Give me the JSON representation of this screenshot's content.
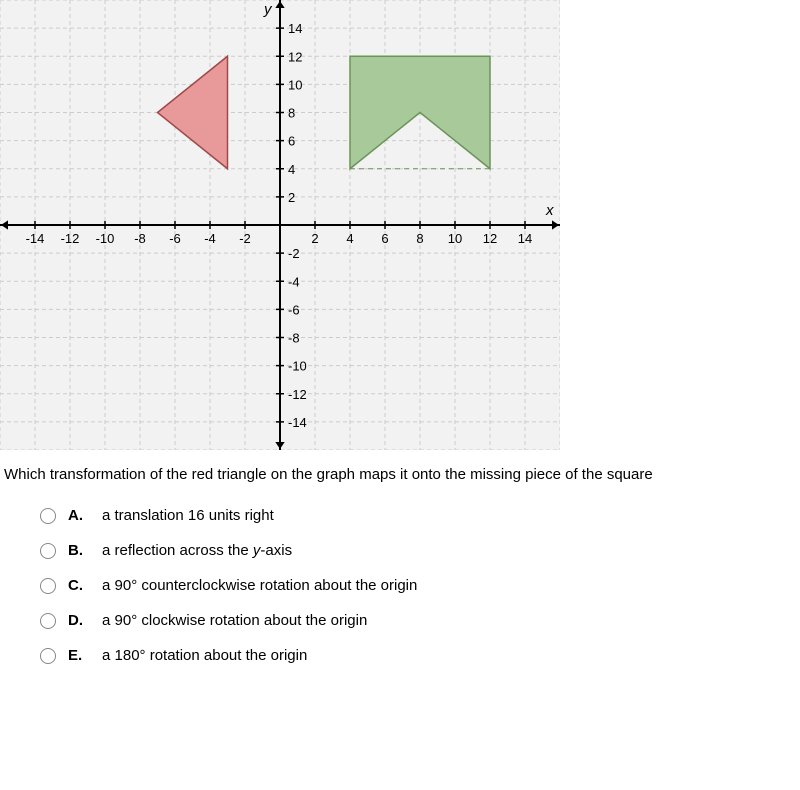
{
  "graph": {
    "bg": "#f2f2f2",
    "grid_color": "#cccccc",
    "axis_color": "#000000",
    "x_label": "x",
    "y_label": "y",
    "x_min": -16,
    "x_max": 16,
    "y_min": -16,
    "y_max": 16,
    "major_step": 2,
    "x_ticks": [
      -14,
      -12,
      -10,
      -8,
      -6,
      -4,
      -2,
      2,
      4,
      6,
      8,
      10,
      12,
      14
    ],
    "y_ticks": [
      14,
      12,
      10,
      8,
      6,
      4,
      2,
      -2,
      -4,
      -6,
      -8,
      -10,
      -12,
      -14
    ],
    "tick_fontsize": 13,
    "label_fontsize": 15,
    "triangle": {
      "fill": "#e89a9a",
      "stroke": "#a04848",
      "stroke_width": 1.5,
      "points": [
        [
          -3,
          12
        ],
        [
          -3,
          4
        ],
        [
          -7,
          8
        ]
      ]
    },
    "square_piece": {
      "fill": "#a8c99a",
      "stroke": "#6b9458",
      "stroke_width": 1.5,
      "points": [
        [
          4,
          12
        ],
        [
          12,
          12
        ],
        [
          12,
          4
        ],
        [
          8,
          8
        ],
        [
          4,
          4
        ]
      ]
    }
  },
  "question_text": "Which transformation of the red triangle on the graph maps it onto the missing piece of the square",
  "choices": [
    {
      "letter": "A.",
      "text": "a translation 16 units right"
    },
    {
      "letter": "B.",
      "text": "a reflection across the y-axis",
      "italic_y": true
    },
    {
      "letter": "C.",
      "text": "a 90° counterclockwise rotation about the origin"
    },
    {
      "letter": "D.",
      "text": "a 90° clockwise rotation about the origin"
    },
    {
      "letter": "E.",
      "text": "a 180° rotation about the origin"
    }
  ]
}
